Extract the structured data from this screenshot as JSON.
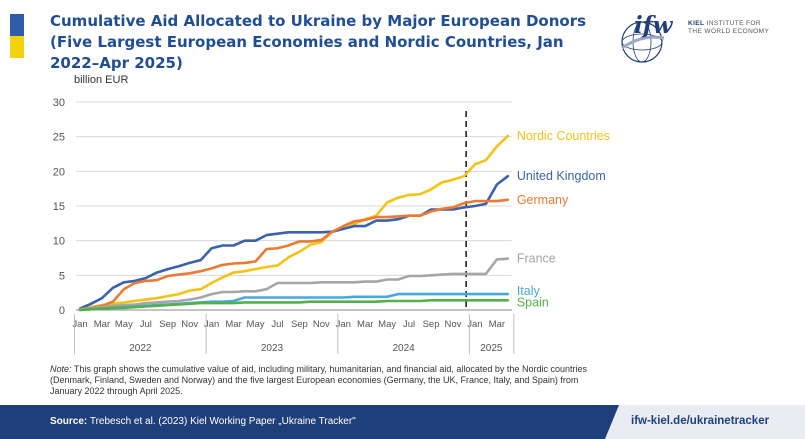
{
  "header": {
    "title": "Cumulative Aid Allocated to Ukraine by Major European Donors (Five Largest European Economies and Nordic Countries, Jan 2022–Apr 2025)",
    "logo_mark": "ifw",
    "logo_line1": "KIEL",
    "logo_line1b": "INSTITUTE FOR",
    "logo_line2": "THE WORLD ECONOMY"
  },
  "note": {
    "label": "Note:",
    "text": "This graph shows the cumulative value of aid, including military, humanitarian, and financial aid, allocated by the Nordic countries (Denmark, Finland, Sweden and Norway) and the five largest European economies (Germany, the UK, France, Italy, and Spain) from January 2022 through April 2025."
  },
  "footer": {
    "source_label": "Source:",
    "source_text": "Trebesch et al. (2023) Kiel Working Paper „Ukraine Tracker\"",
    "url": "ifw-kiel.de/ukrainetracker"
  },
  "chart_data": {
    "type": "line",
    "ylabel": "billion EUR",
    "ylim": [
      0,
      30
    ],
    "yticks": [
      0,
      5,
      10,
      15,
      20,
      25,
      30
    ],
    "grid": true,
    "x_start": "2022-01",
    "x_end": "2025-04",
    "month_tick_labels": [
      "Jan",
      "Mar",
      "May",
      "Jul",
      "Sep",
      "Nov",
      "Jan",
      "Mar",
      "May",
      "Jul",
      "Sep",
      "Nov",
      "Jan",
      "Mar",
      "May",
      "Jul",
      "Sep",
      "Nov",
      "Jan",
      "Mar"
    ],
    "year_labels": [
      "2022",
      "2023",
      "2024",
      "2025"
    ],
    "vertical_marker": "2024-12",
    "series": [
      {
        "name": "Nordic Countries",
        "color": "#f5c218",
        "values": [
          0.1,
          0.4,
          0.7,
          0.9,
          1.1,
          1.3,
          1.5,
          1.7,
          2.0,
          2.3,
          2.8,
          3.0,
          3.9,
          4.7,
          5.4,
          5.6,
          5.9,
          6.2,
          6.4,
          7.6,
          8.4,
          9.4,
          9.8,
          11.3,
          11.7,
          12.4,
          13.1,
          13.6,
          15.5,
          16.2,
          16.6,
          16.7,
          17.4,
          18.4,
          18.8,
          19.3,
          21.0,
          21.6,
          23.6,
          25.1
        ]
      },
      {
        "name": "United Kingdom",
        "color": "#3a63ab",
        "values": [
          0.2,
          0.9,
          1.7,
          3.2,
          4.0,
          4.2,
          4.6,
          5.4,
          5.9,
          6.3,
          6.8,
          7.2,
          8.9,
          9.3,
          9.3,
          10.0,
          10.0,
          10.8,
          11.0,
          11.2,
          11.2,
          11.2,
          11.2,
          11.3,
          11.7,
          12.1,
          12.1,
          12.9,
          12.9,
          13.1,
          13.6,
          13.6,
          14.5,
          14.5,
          14.5,
          14.8,
          15.0,
          15.3,
          18.1,
          19.3
        ]
      },
      {
        "name": "Germany",
        "color": "#ec7a32",
        "values": [
          0.1,
          0.3,
          0.6,
          1.2,
          3.0,
          3.9,
          4.2,
          4.3,
          4.9,
          5.1,
          5.3,
          5.6,
          6.0,
          6.5,
          6.7,
          6.8,
          7.0,
          8.8,
          8.9,
          9.3,
          9.9,
          9.9,
          10.1,
          11.3,
          12.1,
          12.8,
          13.0,
          13.4,
          13.4,
          13.5,
          13.6,
          13.6,
          14.2,
          14.6,
          14.8,
          15.4,
          15.7,
          15.7,
          15.7,
          15.9
        ]
      },
      {
        "name": "France",
        "color": "#a6a6a6",
        "values": [
          0.1,
          0.2,
          0.4,
          0.6,
          0.7,
          0.8,
          1.0,
          1.1,
          1.2,
          1.3,
          1.5,
          1.8,
          2.3,
          2.6,
          2.6,
          2.7,
          2.7,
          3.0,
          3.9,
          3.9,
          3.9,
          3.9,
          4.0,
          4.0,
          4.0,
          4.0,
          4.1,
          4.1,
          4.4,
          4.4,
          4.9,
          4.9,
          5.0,
          5.1,
          5.2,
          5.2,
          5.2,
          5.2,
          7.3,
          7.4
        ]
      },
      {
        "name": "Italy",
        "color": "#47a8e0",
        "values": [
          0.0,
          0.1,
          0.2,
          0.3,
          0.4,
          0.5,
          0.6,
          0.7,
          0.8,
          0.9,
          1.0,
          1.1,
          1.2,
          1.2,
          1.3,
          1.8,
          1.8,
          1.8,
          1.8,
          1.8,
          1.8,
          1.8,
          1.8,
          1.8,
          1.8,
          1.9,
          1.9,
          1.9,
          1.9,
          2.3,
          2.3,
          2.3,
          2.3,
          2.3,
          2.3,
          2.3,
          2.3,
          2.3,
          2.3,
          2.3
        ]
      },
      {
        "name": "Spain",
        "color": "#54b04a",
        "values": [
          0.0,
          0.1,
          0.2,
          0.3,
          0.3,
          0.4,
          0.5,
          0.6,
          0.7,
          0.8,
          0.9,
          1.0,
          1.0,
          1.0,
          1.0,
          1.1,
          1.1,
          1.1,
          1.1,
          1.1,
          1.1,
          1.2,
          1.2,
          1.2,
          1.2,
          1.2,
          1.2,
          1.2,
          1.3,
          1.3,
          1.3,
          1.3,
          1.4,
          1.4,
          1.4,
          1.4,
          1.4,
          1.4,
          1.4,
          1.4
        ]
      }
    ]
  }
}
